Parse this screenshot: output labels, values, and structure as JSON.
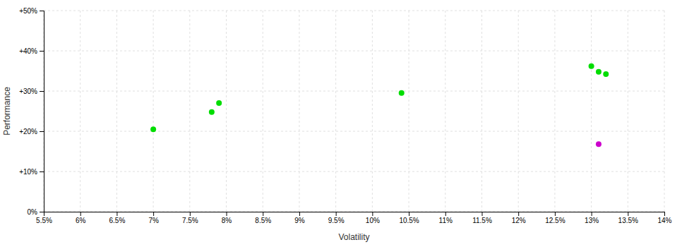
{
  "chart_data": {
    "type": "scatter",
    "xlabel": "Volatility",
    "ylabel": "Performance",
    "xlim": [
      0.055,
      0.14
    ],
    "ylim": [
      0.0,
      0.5
    ],
    "xticks": [
      {
        "value": 0.055,
        "label": "5.5%"
      },
      {
        "value": 0.06,
        "label": "6%"
      },
      {
        "value": 0.065,
        "label": "6.5%"
      },
      {
        "value": 0.07,
        "label": "7%"
      },
      {
        "value": 0.075,
        "label": "7.5%"
      },
      {
        "value": 0.08,
        "label": "8%"
      },
      {
        "value": 0.085,
        "label": "8.5%"
      },
      {
        "value": 0.09,
        "label": "9%"
      },
      {
        "value": 0.095,
        "label": "9.5%"
      },
      {
        "value": 0.1,
        "label": "10%"
      },
      {
        "value": 0.105,
        "label": "10.5%"
      },
      {
        "value": 0.11,
        "label": "11%"
      },
      {
        "value": 0.115,
        "label": "11.5%"
      },
      {
        "value": 0.12,
        "label": "12%"
      },
      {
        "value": 0.125,
        "label": "12.5%"
      },
      {
        "value": 0.13,
        "label": "13%"
      },
      {
        "value": 0.135,
        "label": "13.5%"
      },
      {
        "value": 0.14,
        "label": "14%"
      }
    ],
    "yticks": [
      {
        "value": 0.0,
        "label": "0%"
      },
      {
        "value": 0.1,
        "label": "+10%"
      },
      {
        "value": 0.2,
        "label": "+20%"
      },
      {
        "value": 0.3,
        "label": "+30%"
      },
      {
        "value": 0.4,
        "label": "+40%"
      },
      {
        "value": 0.5,
        "label": "+50%"
      }
    ],
    "grid": true,
    "series": [
      {
        "color": "#00dd00",
        "x": [
          0.07,
          0.079,
          0.078,
          0.104,
          0.13,
          0.131,
          0.132
        ],
        "values": [
          0.205,
          0.27,
          0.248,
          0.295,
          0.362,
          0.348,
          0.342
        ]
      },
      {
        "color": "#cc00cc",
        "x": [
          0.131
        ],
        "values": [
          0.168
        ]
      }
    ]
  }
}
